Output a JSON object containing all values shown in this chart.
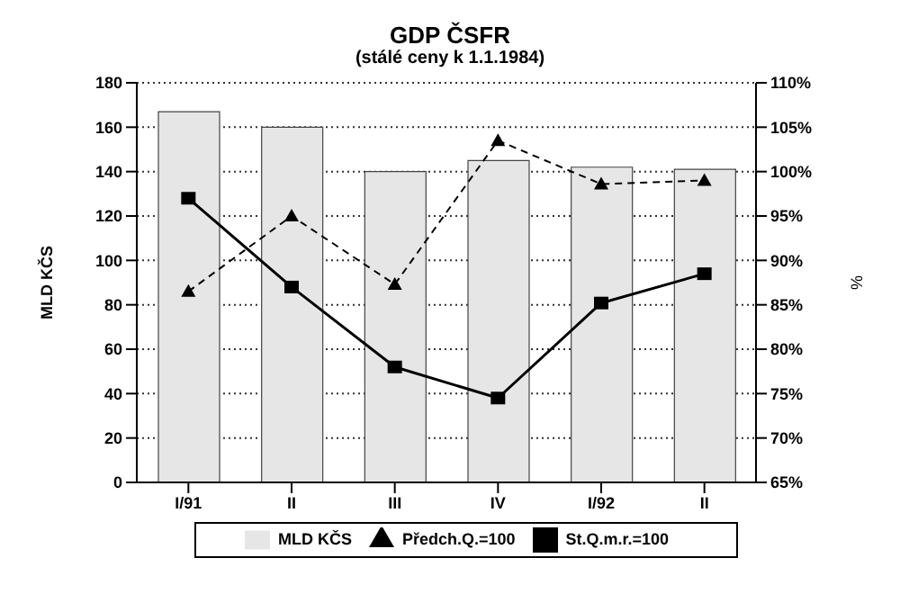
{
  "chart_data": {
    "type": "bar",
    "title": "GDP ČSFR",
    "subtitle": "(stálé ceny k 1.1.1984)",
    "ylabel": "MLD KČS",
    "y2label": "%",
    "categories": [
      "I/91",
      "II",
      "III",
      "IV",
      "I/92",
      "II"
    ],
    "series": [
      {
        "name": "MLD KČS",
        "color": "#e6e6e6",
        "values": [
          167,
          160,
          140,
          145,
          142,
          141
        ]
      },
      {
        "name": "Předch.Q.=100",
        "type": "line",
        "axis": "y2",
        "color": "#000000",
        "marker": "triangle",
        "line_style": "dashed",
        "values": [
          86.5,
          95,
          87.3,
          103.5,
          98.6,
          99
        ]
      },
      {
        "name": "St.Q.m.r.=100",
        "type": "line",
        "axis": "y2",
        "color": "#000000",
        "marker": "square",
        "line_style": "solid",
        "values": [
          97,
          87,
          78,
          74.5,
          85.2,
          88.5
        ]
      }
    ],
    "ylim": [
      0,
      180
    ],
    "yticks": [
      0,
      20,
      40,
      60,
      80,
      100,
      120,
      140,
      160,
      180
    ],
    "y2lim": [
      65,
      110
    ],
    "y2ticks": [
      {
        "value": 65,
        "label": "65%"
      },
      {
        "value": 70,
        "label": "70%"
      },
      {
        "value": 75,
        "label": "75%"
      },
      {
        "value": 80,
        "label": "80%"
      },
      {
        "value": 85,
        "label": "85%"
      },
      {
        "value": 90,
        "label": "90%"
      },
      {
        "value": 95,
        "label": "95%"
      },
      {
        "value": 100,
        "label": "100%"
      },
      {
        "value": 105,
        "label": "105%"
      },
      {
        "value": 110,
        "label": "110%"
      }
    ],
    "grid": "y",
    "legend": "bottom"
  }
}
